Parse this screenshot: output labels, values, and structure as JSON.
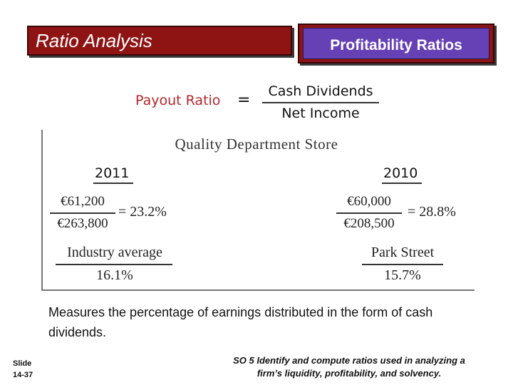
{
  "header": {
    "title_left": "Ratio Analysis",
    "title_right": "Profitability Ratios"
  },
  "formula": {
    "label": "Payout Ratio",
    "equals": "=",
    "numerator": "Cash Dividends",
    "denominator": "Net Income"
  },
  "panel": {
    "store_name": "Quality Department Store",
    "col_2011": {
      "year": "2011",
      "numerator": "€61,200",
      "denominator": "€263,800",
      "result": "= 23.2%",
      "compare_label": "Industry average",
      "compare_value": "16.1%"
    },
    "col_2010": {
      "year": "2010",
      "numerator": "€60,000",
      "denominator": "€208,500",
      "result": "= 28.8%",
      "compare_label": "Park Street",
      "compare_value": "15.7%"
    }
  },
  "description": "Measures the percentage of earnings distributed in the form of cash dividends.",
  "footer": {
    "slide_line1": "Slide",
    "slide_line2": "14-37",
    "objective_line1": "SO 5  Identify and compute ratios used in analyzing a",
    "objective_line2": "firm’s liquidity, profitability, and solvency."
  },
  "colors": {
    "header_red": "#8e1414",
    "header_purple": "#6640b5",
    "formula_label_red": "#b3262b"
  }
}
